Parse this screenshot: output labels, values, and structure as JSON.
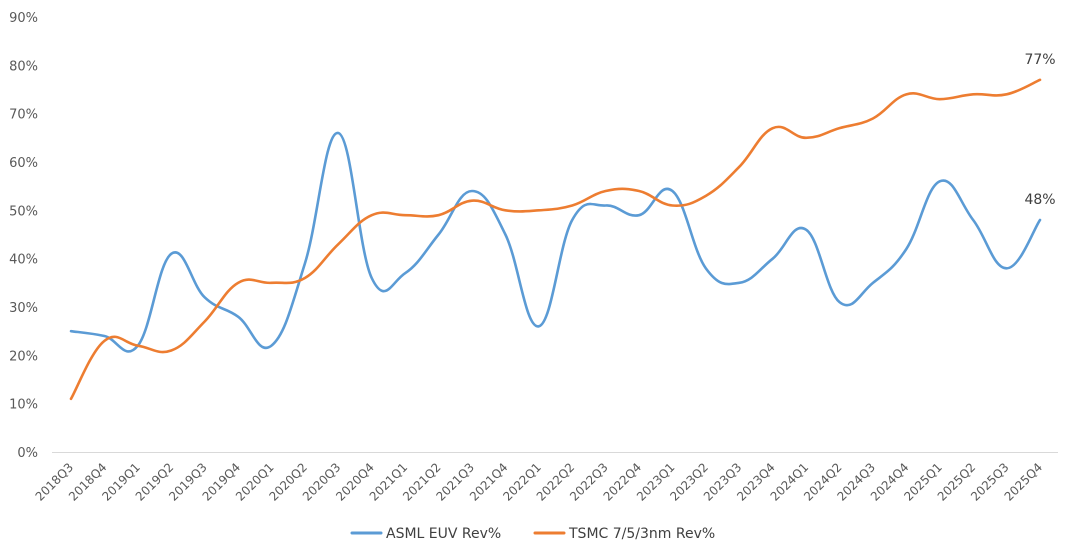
{
  "chart_data": {
    "type": "line",
    "title": "",
    "xlabel": "",
    "ylabel": "",
    "ylim": [
      0,
      90
    ],
    "y_ticks": [
      0,
      10,
      20,
      30,
      40,
      50,
      60,
      70,
      80,
      90
    ],
    "y_tick_labels": [
      "0%",
      "10%",
      "20%",
      "30%",
      "40%",
      "50%",
      "60%",
      "70%",
      "80%",
      "90%"
    ],
    "grid": false,
    "legend_placement": "bottom-center",
    "categories": [
      "2018Q3",
      "2018Q4",
      "2019Q1",
      "2019Q2",
      "2019Q3",
      "2019Q4",
      "2020Q1",
      "2020Q2",
      "2020Q3",
      "2020Q4",
      "2021Q1",
      "2021Q2",
      "2021Q3",
      "2021Q4",
      "2022Q1",
      "2022Q2",
      "2022Q3",
      "2022Q4",
      "2023Q1",
      "2023Q2",
      "2023Q3",
      "2023Q4",
      "2024Q1",
      "2024Q2",
      "2024Q3",
      "2024Q4",
      "2025Q1",
      "2025Q2",
      "2025Q3",
      "2025Q4"
    ],
    "series": [
      {
        "name": "ASML EUV Rev%",
        "color": "#5b9bd5",
        "values": [
          25,
          24,
          22,
          41,
          32,
          28,
          22,
          39,
          66,
          36,
          37,
          45,
          54,
          45,
          26,
          48,
          51,
          49,
          54,
          38,
          35,
          40,
          46,
          31,
          35,
          42,
          56,
          48,
          38,
          48
        ],
        "end_label": "48%"
      },
      {
        "name": "TSMC 7/5/3nm Rev%",
        "color": "#ed7d31",
        "values": [
          11,
          23,
          22,
          21,
          27,
          35,
          35,
          36,
          43,
          49,
          49,
          49,
          52,
          50,
          50,
          51,
          54,
          54,
          51,
          53,
          59,
          67,
          65,
          67,
          69,
          74,
          73,
          74,
          74,
          77
        ],
        "end_label": "77%"
      }
    ]
  }
}
